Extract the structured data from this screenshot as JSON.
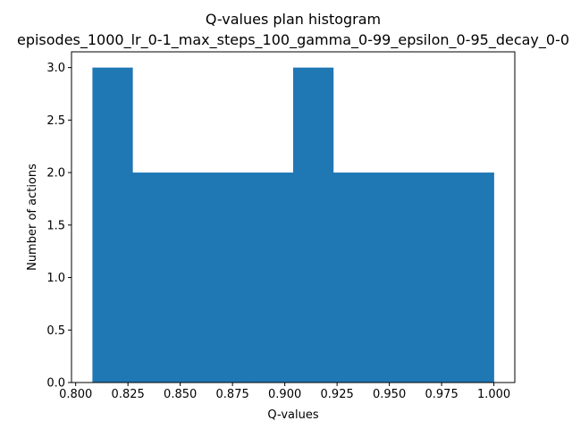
{
  "chart_data": {
    "type": "bar",
    "title": "Q-values plan histogram",
    "subtitle": "episodes_1000_lr_0-1_max_steps_100_gamma_0-99_epsilon_0-95_decay_0-0",
    "xlabel": "Q-values",
    "ylabel": "Number of actions",
    "xlim": [
      0.798,
      1.01
    ],
    "ylim": [
      0,
      3.15
    ],
    "x_ticks": [
      "0.800",
      "0.825",
      "0.850",
      "0.875",
      "0.900",
      "0.925",
      "0.950",
      "0.975",
      "1.000"
    ],
    "y_ticks": [
      "0.0",
      "0.5",
      "1.0",
      "1.5",
      "2.0",
      "2.5",
      "3.0"
    ],
    "bin_edges": [
      0.808,
      0.8272,
      0.8464,
      0.8656,
      0.8848,
      0.904,
      0.9232,
      0.9424,
      0.9616,
      0.9808,
      1.0
    ],
    "values": [
      3,
      2,
      2,
      2,
      2,
      3,
      2,
      2,
      2,
      2
    ],
    "bar_color": "#1f77b4",
    "grid": false,
    "legend": "none"
  }
}
